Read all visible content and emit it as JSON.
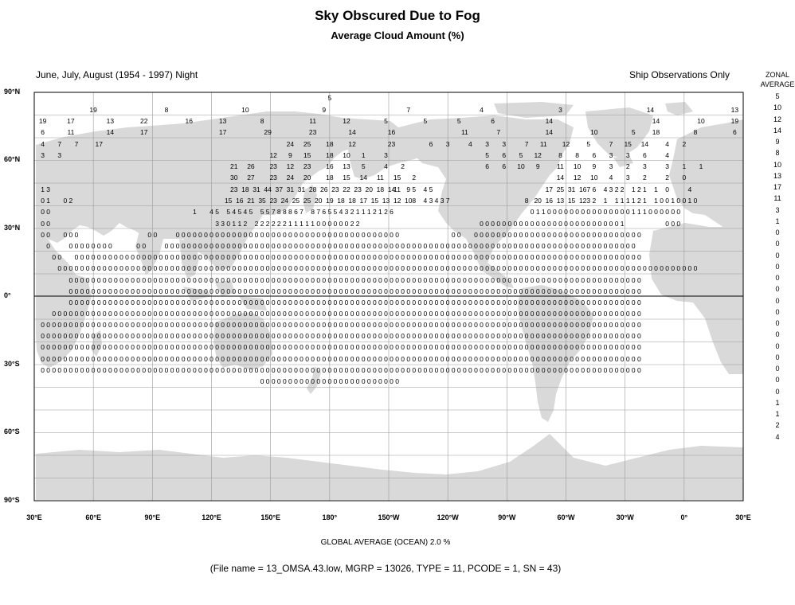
{
  "title": "Sky Obscured Due to Fog",
  "subtitle": "Average Cloud Amount (%)",
  "season": "June, July, August (1954 - 1997) Night",
  "source_note": "Ship Observations Only",
  "zonal_header": [
    "ZONAL",
    "AVERAGE"
  ],
  "lat_labels": [
    "90°N",
    "60°N",
    "30°N",
    "0°",
    "30°S",
    "60°S",
    "90°S"
  ],
  "lon_labels": [
    "30°E",
    "60°E",
    "90°E",
    "120°E",
    "150°E",
    "180°",
    "150°W",
    "120°W",
    "90°W",
    "60°W",
    "30°W",
    "0°",
    "30°E"
  ],
  "global_average": "GLOBAL AVERAGE (OCEAN)   2.0 %",
  "file_info": "(File name = 13_OMSA.43.low, MGRP = 13026, TYPE = 11, PCODE = 1, SN = 43)",
  "colors": {
    "land": "#d9d9d9",
    "grid": "#9a9a9a",
    "frame": "#000000",
    "equator": "#000000"
  },
  "zonal_averages": [
    "5",
    "10",
    "12",
    "14",
    "9",
    "8",
    "10",
    "13",
    "17",
    "11",
    "3",
    "1",
    "0",
    "0",
    "0",
    "0",
    "0",
    "0",
    "0",
    "0",
    "0",
    "0",
    "0",
    "0",
    "0",
    "0",
    "0",
    "1",
    "1",
    "2",
    "4"
  ],
  "grid_rows": [
    {
      "lat": "87N",
      "cells": [
        [
          52,
          "5"
        ]
      ]
    },
    {
      "lat": "83N",
      "cells": [
        [
          10,
          "19"
        ],
        [
          23,
          "8"
        ],
        [
          37,
          "10"
        ],
        [
          51,
          "9"
        ],
        [
          66,
          "7"
        ],
        [
          79,
          "4"
        ],
        [
          93,
          "3"
        ],
        [
          109,
          "14"
        ],
        [
          124,
          "13"
        ]
      ]
    },
    {
      "lat": "79N",
      "cells": [
        [
          1,
          "19"
        ],
        [
          6,
          "17"
        ],
        [
          13,
          "13"
        ],
        [
          19,
          "22"
        ],
        [
          27,
          "16"
        ],
        [
          33,
          "13"
        ],
        [
          40,
          "8"
        ],
        [
          49,
          "11"
        ],
        [
          55,
          "12"
        ],
        [
          62,
          "5"
        ],
        [
          69,
          "5"
        ],
        [
          75,
          "5"
        ],
        [
          81,
          "6"
        ],
        [
          91,
          "14"
        ],
        [
          110,
          "14"
        ],
        [
          118,
          "10"
        ],
        [
          124,
          "19"
        ]
      ]
    },
    {
      "lat": "75N",
      "cells": [
        [
          1,
          "6"
        ],
        [
          6,
          "11"
        ],
        [
          13,
          "14"
        ],
        [
          19,
          "17"
        ],
        [
          33,
          "17"
        ],
        [
          41,
          "29"
        ],
        [
          49,
          "23"
        ],
        [
          56,
          "14"
        ],
        [
          63,
          "16"
        ],
        [
          76,
          "11"
        ],
        [
          82,
          "7"
        ],
        [
          91,
          "14"
        ],
        [
          99,
          "10"
        ],
        [
          106,
          "5"
        ],
        [
          110,
          "18"
        ],
        [
          117,
          "8"
        ],
        [
          124,
          "6"
        ]
      ]
    },
    {
      "lat": "71N",
      "cells": [
        [
          1,
          "4"
        ],
        [
          4,
          "7"
        ],
        [
          7,
          "7"
        ],
        [
          11,
          "17"
        ],
        [
          45,
          "24"
        ],
        [
          48,
          "25"
        ],
        [
          52,
          "18"
        ],
        [
          56,
          "12"
        ],
        [
          63,
          "23"
        ],
        [
          70,
          "6"
        ],
        [
          73,
          "3"
        ],
        [
          77,
          "4"
        ],
        [
          80,
          "3"
        ],
        [
          83,
          "3"
        ],
        [
          87,
          "7"
        ],
        [
          90,
          "11"
        ],
        [
          94,
          "12"
        ],
        [
          98,
          "5"
        ],
        [
          102,
          "7"
        ],
        [
          105,
          "15"
        ],
        [
          108,
          "14"
        ],
        [
          112,
          "4"
        ],
        [
          115,
          "2"
        ]
      ]
    },
    {
      "lat": "67N",
      "cells": [
        [
          1,
          "3"
        ],
        [
          4,
          "3"
        ],
        [
          42,
          "12"
        ],
        [
          45,
          "9"
        ],
        [
          48,
          "15"
        ],
        [
          52,
          "18"
        ],
        [
          55,
          "10"
        ],
        [
          58,
          "1"
        ],
        [
          62,
          "3"
        ],
        [
          80,
          "5"
        ],
        [
          83,
          "6"
        ],
        [
          86,
          "5"
        ],
        [
          89,
          "12"
        ],
        [
          93,
          "8"
        ],
        [
          96,
          "8"
        ],
        [
          99,
          "6"
        ],
        [
          102,
          "3"
        ],
        [
          105,
          "3"
        ],
        [
          108,
          "6"
        ],
        [
          112,
          "4"
        ]
      ]
    },
    {
      "lat": "63N",
      "cells": [
        [
          35,
          "21"
        ],
        [
          38,
          "26"
        ],
        [
          42,
          "23"
        ],
        [
          45,
          "12"
        ],
        [
          48,
          "23"
        ],
        [
          52,
          "16"
        ],
        [
          55,
          "13"
        ],
        [
          58,
          "5"
        ],
        [
          62,
          "4"
        ],
        [
          65,
          "2"
        ],
        [
          80,
          "6"
        ],
        [
          83,
          "6"
        ],
        [
          86,
          "10"
        ],
        [
          89,
          "9"
        ],
        [
          93,
          "11"
        ],
        [
          96,
          "10"
        ],
        [
          99,
          "9"
        ],
        [
          102,
          "3"
        ],
        [
          105,
          "2"
        ],
        [
          108,
          "3"
        ],
        [
          112,
          "3"
        ],
        [
          115,
          "1"
        ],
        [
          118,
          "1"
        ]
      ]
    },
    {
      "lat": "59N",
      "cells": [
        [
          35,
          "30"
        ],
        [
          38,
          "27"
        ],
        [
          42,
          "23"
        ],
        [
          45,
          "24"
        ],
        [
          48,
          "20"
        ],
        [
          52,
          "18"
        ],
        [
          55,
          "15"
        ],
        [
          58,
          "14"
        ],
        [
          61,
          "11"
        ],
        [
          64,
          "15"
        ],
        [
          67,
          "2"
        ],
        [
          93,
          "14"
        ],
        [
          96,
          "12"
        ],
        [
          99,
          "10"
        ],
        [
          102,
          "4"
        ],
        [
          105,
          "3"
        ],
        [
          108,
          "2"
        ],
        [
          112,
          "2"
        ],
        [
          115,
          "0"
        ]
      ]
    },
    {
      "lat": "55N",
      "cells": [
        [
          1,
          "1"
        ],
        [
          2,
          "3"
        ],
        [
          35,
          "23"
        ],
        [
          37,
          "18"
        ],
        [
          39,
          "31"
        ],
        [
          41,
          "44"
        ],
        [
          43,
          "37"
        ],
        [
          45,
          "31"
        ],
        [
          47,
          "31"
        ],
        [
          49,
          "28"
        ],
        [
          51,
          "26"
        ],
        [
          53,
          "23"
        ],
        [
          55,
          "22"
        ],
        [
          57,
          "23"
        ],
        [
          59,
          "20"
        ],
        [
          61,
          "18"
        ],
        [
          63,
          "14"
        ],
        [
          64,
          "11"
        ],
        [
          66,
          "9"
        ],
        [
          67,
          "5"
        ],
        [
          69,
          "4"
        ],
        [
          70,
          "5"
        ],
        [
          91,
          "17"
        ],
        [
          93,
          "25"
        ],
        [
          95,
          "31"
        ],
        [
          97,
          "16"
        ],
        [
          98,
          "7"
        ],
        [
          99,
          "6"
        ],
        [
          101,
          "4"
        ],
        [
          102,
          "3"
        ],
        [
          103,
          "2"
        ],
        [
          104,
          "2"
        ],
        [
          106,
          "1"
        ],
        [
          107,
          "2"
        ],
        [
          108,
          "1"
        ],
        [
          110,
          "1"
        ],
        [
          112,
          "0"
        ],
        [
          116,
          "4"
        ]
      ]
    },
    {
      "lat": "51N",
      "cells": [
        [
          1,
          "0"
        ],
        [
          2,
          "1"
        ],
        [
          5,
          "0"
        ],
        [
          6,
          "2"
        ],
        [
          34,
          "15"
        ],
        [
          36,
          "16"
        ],
        [
          38,
          "21"
        ],
        [
          40,
          "35"
        ],
        [
          42,
          "23"
        ],
        [
          44,
          "24"
        ],
        [
          46,
          "25"
        ],
        [
          48,
          "25"
        ],
        [
          50,
          "20"
        ],
        [
          52,
          "19"
        ],
        [
          54,
          "18"
        ],
        [
          56,
          "18"
        ],
        [
          58,
          "17"
        ],
        [
          60,
          "15"
        ],
        [
          62,
          "13"
        ],
        [
          64,
          "12"
        ],
        [
          66,
          "10"
        ],
        [
          67,
          "8"
        ],
        [
          69,
          "4"
        ],
        [
          70,
          "3"
        ],
        [
          71,
          "4"
        ],
        [
          72,
          "3"
        ],
        [
          73,
          "7"
        ],
        [
          87,
          "8"
        ],
        [
          89,
          "20"
        ],
        [
          91,
          "16"
        ],
        [
          93,
          "13"
        ],
        [
          95,
          "15"
        ],
        [
          97,
          "12"
        ],
        [
          98,
          "3"
        ],
        [
          99,
          "2"
        ],
        [
          101,
          "1"
        ],
        [
          103,
          "1"
        ],
        [
          104,
          "1"
        ],
        [
          105,
          "1"
        ],
        [
          106,
          "1"
        ],
        [
          107,
          "2"
        ],
        [
          108,
          "1"
        ],
        [
          110,
          "1"
        ],
        [
          111,
          "0"
        ],
        [
          112,
          "0"
        ],
        [
          113,
          "1"
        ],
        [
          114,
          "0"
        ],
        [
          115,
          "0"
        ],
        [
          116,
          "1"
        ],
        [
          117,
          "0"
        ]
      ]
    },
    {
      "lat": "47N",
      "cells": [
        [
          1,
          "0"
        ],
        [
          2,
          "0"
        ],
        [
          28,
          "1"
        ],
        [
          31,
          "4"
        ],
        [
          32,
          "5"
        ],
        [
          34,
          "5"
        ],
        [
          35,
          "4"
        ],
        [
          36,
          "5"
        ],
        [
          37,
          "4"
        ],
        [
          38,
          "5"
        ],
        [
          40,
          "5"
        ],
        [
          41,
          "5"
        ],
        [
          42,
          "7"
        ],
        [
          43,
          "8"
        ],
        [
          44,
          "8"
        ],
        [
          45,
          "8"
        ],
        [
          46,
          "6"
        ],
        [
          47,
          "7"
        ],
        [
          49,
          "8"
        ],
        [
          50,
          "7"
        ],
        [
          51,
          "6"
        ],
        [
          52,
          "5"
        ],
        [
          53,
          "5"
        ],
        [
          54,
          "4"
        ],
        [
          55,
          "3"
        ],
        [
          56,
          "2"
        ],
        [
          57,
          "1"
        ],
        [
          58,
          "1"
        ],
        [
          59,
          "1"
        ],
        [
          60,
          "2"
        ],
        [
          61,
          "1"
        ],
        [
          62,
          "2"
        ],
        [
          63,
          "6"
        ],
        [
          88,
          "0"
        ],
        [
          89,
          "1"
        ],
        [
          90,
          "1"
        ],
        [
          91,
          "0"
        ],
        [
          92,
          "0"
        ],
        [
          93,
          "0"
        ],
        [
          94,
          "0"
        ],
        [
          95,
          "0"
        ],
        [
          96,
          "0"
        ],
        [
          97,
          "0"
        ],
        [
          98,
          "0"
        ],
        [
          99,
          "0"
        ],
        [
          100,
          "0"
        ],
        [
          101,
          "0"
        ],
        [
          102,
          "0"
        ],
        [
          103,
          "0"
        ],
        [
          104,
          "0"
        ],
        [
          105,
          "0"
        ],
        [
          106,
          "1"
        ],
        [
          107,
          "1"
        ],
        [
          108,
          "1"
        ],
        [
          109,
          "0"
        ],
        [
          110,
          "0"
        ],
        [
          111,
          "0"
        ],
        [
          112,
          "0"
        ],
        [
          113,
          "0"
        ],
        [
          114,
          "0"
        ]
      ]
    },
    {
      "lat": "43N",
      "cells": [
        [
          1,
          "0"
        ],
        [
          2,
          "0"
        ],
        [
          32,
          "3"
        ],
        [
          33,
          "3"
        ],
        [
          34,
          "0"
        ],
        [
          35,
          "1"
        ],
        [
          36,
          "1"
        ],
        [
          37,
          "2"
        ],
        [
          39,
          "2"
        ],
        [
          40,
          "2"
        ],
        [
          41,
          "2"
        ],
        [
          42,
          "2"
        ],
        [
          43,
          "2"
        ],
        [
          44,
          "2"
        ],
        [
          45,
          "1"
        ],
        [
          46,
          "1"
        ],
        [
          47,
          "1"
        ],
        [
          48,
          "1"
        ],
        [
          49,
          "1"
        ],
        [
          50,
          "0"
        ],
        [
          51,
          "0"
        ],
        [
          52,
          "0"
        ],
        [
          53,
          "0"
        ],
        [
          54,
          "0"
        ],
        [
          55,
          "0"
        ],
        [
          56,
          "2"
        ],
        [
          57,
          "2"
        ],
        [
          79,
          "0"
        ],
        [
          80,
          "0"
        ],
        [
          81,
          "0"
        ],
        [
          82,
          "0"
        ],
        [
          83,
          "0"
        ],
        [
          84,
          "0"
        ],
        [
          85,
          "0"
        ],
        [
          86,
          "0"
        ],
        [
          87,
          "0"
        ],
        [
          88,
          "0"
        ],
        [
          89,
          "0"
        ],
        [
          90,
          "0"
        ],
        [
          91,
          "0"
        ],
        [
          92,
          "0"
        ],
        [
          93,
          "0"
        ],
        [
          94,
          "0"
        ],
        [
          95,
          "0"
        ],
        [
          96,
          "0"
        ],
        [
          97,
          "0"
        ],
        [
          98,
          "0"
        ],
        [
          99,
          "0"
        ],
        [
          100,
          "0"
        ],
        [
          101,
          "0"
        ],
        [
          102,
          "0"
        ],
        [
          103,
          "0"
        ],
        [
          104,
          "1"
        ],
        [
          112,
          "0"
        ],
        [
          113,
          "0"
        ],
        [
          114,
          "0"
        ]
      ]
    }
  ]
}
